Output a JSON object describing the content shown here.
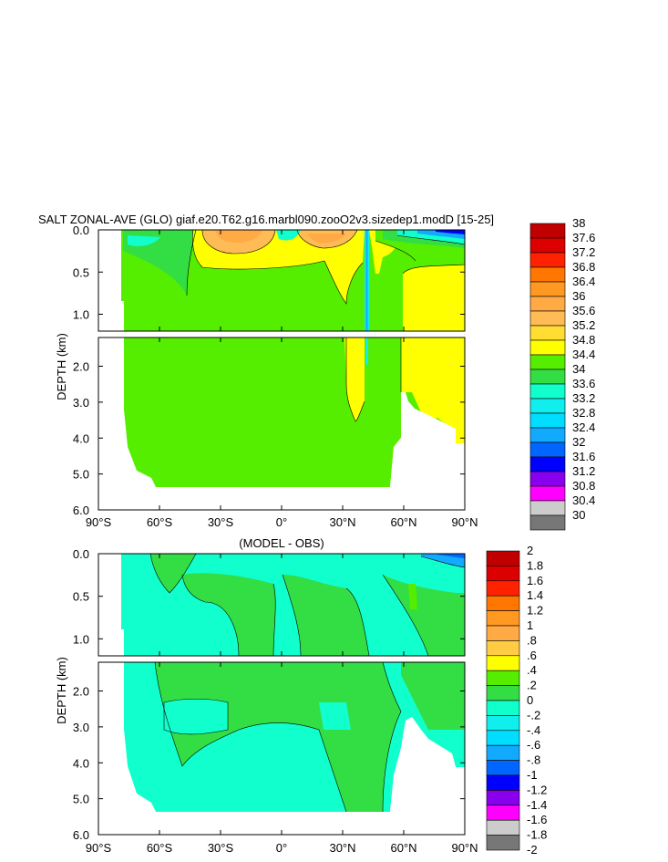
{
  "chart_data": [
    {
      "type": "heatmap",
      "title": "SALT ZONAL-AVE (GLO) giaf.e20.T62.g16.marbl090.zooO2v3.sizedep1.modD [15-25]",
      "ylabel": "DEPTH (km)",
      "xlabel": "",
      "x_ticks": [
        "90°S",
        "60°S",
        "30°S",
        "0°",
        "30°N",
        "60°N",
        "90°N"
      ],
      "x_tick_values": [
        -90,
        -60,
        -30,
        0,
        30,
        60,
        90
      ],
      "upper_panel": {
        "ylim": [
          0.0,
          1.2
        ],
        "y_ticks": [
          "0.0",
          "0.5",
          "1.0"
        ],
        "y_tick_values": [
          0.0,
          0.5,
          1.0
        ]
      },
      "lower_panel": {
        "ylim": [
          1.2,
          6.0
        ],
        "y_ticks": [
          "2.0",
          "3.0",
          "4.0",
          "5.0",
          "6.0"
        ],
        "y_tick_values": [
          2.0,
          3.0,
          4.0,
          5.0,
          6.0
        ]
      },
      "colorbar": {
        "labels": [
          "38",
          "37.6",
          "37.2",
          "36.8",
          "36.4",
          "36",
          "35.6",
          "35.2",
          "34.8",
          "34.4",
          "34",
          "33.6",
          "33.2",
          "32.8",
          "32.4",
          "32",
          "31.6",
          "31.2",
          "30.8",
          "30.4",
          "30"
        ],
        "colors": [
          "#c00000",
          "#dd0000",
          "#ff2200",
          "#ff7700",
          "#ff9922",
          "#ffaa44",
          "#ffbb55",
          "#ffdd33",
          "#ffff00",
          "#55ee00",
          "#33dd44",
          "#11ffcc",
          "#11eeee",
          "#00ddff",
          "#11aaff",
          "#0066ff",
          "#0000ff",
          "#8800ee",
          "#ff00ff",
          "#cccccc",
          "#777777"
        ]
      }
    },
    {
      "type": "heatmap",
      "title": "(MODEL - OBS)",
      "ylabel": "DEPTH (km)",
      "xlabel": "",
      "x_ticks": [
        "90°S",
        "60°S",
        "30°S",
        "0°",
        "30°N",
        "60°N",
        "90°N"
      ],
      "x_tick_values": [
        -90,
        -60,
        -30,
        0,
        30,
        60,
        90
      ],
      "upper_panel": {
        "ylim": [
          0.0,
          1.2
        ],
        "y_ticks": [
          "0.0",
          "0.5",
          "1.0"
        ],
        "y_tick_values": [
          0.0,
          0.5,
          1.0
        ]
      },
      "lower_panel": {
        "ylim": [
          1.2,
          6.0
        ],
        "y_ticks": [
          "2.0",
          "3.0",
          "4.0",
          "5.0",
          "6.0"
        ],
        "y_tick_values": [
          2.0,
          3.0,
          4.0,
          5.0,
          6.0
        ]
      },
      "colorbar": {
        "labels": [
          "2",
          "1.8",
          "1.6",
          "1.4",
          "1.2",
          "1",
          ".8",
          ".6",
          ".4",
          ".2",
          "0",
          "-.2",
          "-.4",
          "-.6",
          "-.8",
          "-1",
          "-1.2",
          "-1.4",
          "-1.6",
          "-1.8",
          "-2"
        ],
        "colors": [
          "#c00000",
          "#dd0000",
          "#ff2200",
          "#ff7700",
          "#ff9922",
          "#ffaa44",
          "#ffcc44",
          "#ffff00",
          "#55ee00",
          "#33dd44",
          "#11ffcc",
          "#11eeee",
          "#00ddff",
          "#11aaff",
          "#0066ff",
          "#0000ff",
          "#8800ee",
          "#ff00ff",
          "#cccccc",
          "#777777"
        ]
      }
    }
  ]
}
